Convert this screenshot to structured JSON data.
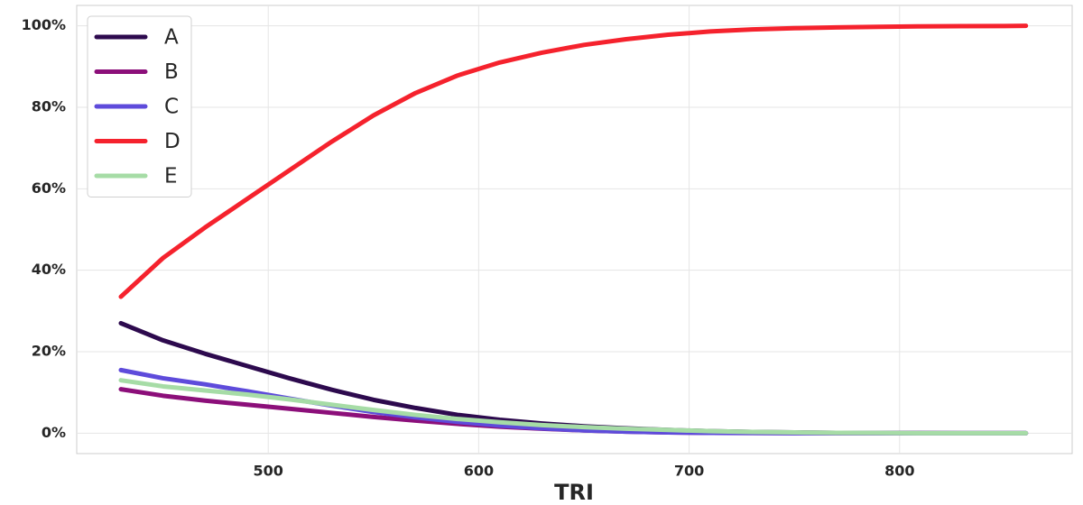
{
  "chart_data": {
    "type": "line",
    "x_label": "TRI",
    "x": [
      430,
      450,
      470,
      490,
      510,
      530,
      550,
      570,
      590,
      610,
      630,
      650,
      670,
      690,
      710,
      730,
      750,
      770,
      790,
      810,
      830,
      850,
      860
    ],
    "series": [
      {
        "name": "A",
        "color": "#2d0a4e",
        "values": [
          27,
          22.8,
          19.5,
          16.5,
          13.5,
          10.7,
          8.2,
          6.2,
          4.5,
          3.3,
          2.4,
          1.7,
          1.2,
          0.8,
          0.5,
          0.3,
          0.2,
          0.1,
          0.05,
          0.03,
          0.02,
          0.01,
          0
        ]
      },
      {
        "name": "B",
        "color": "#8c0f7a",
        "values": [
          10.8,
          9.2,
          8,
          7,
          6,
          5,
          4,
          3.1,
          2.3,
          1.6,
          1.1,
          0.7,
          0.4,
          0.2,
          0.1,
          0.05,
          0.03,
          0.01,
          0,
          0,
          0,
          0,
          0
        ]
      },
      {
        "name": "C",
        "color": "#5e4bdb",
        "values": [
          15.5,
          13.5,
          12,
          10.3,
          8.5,
          6.8,
          5.2,
          3.9,
          2.8,
          1.9,
          1.2,
          0.7,
          0.4,
          0.2,
          0.1,
          0.05,
          0.02,
          0.01,
          0,
          0,
          0,
          0,
          0
        ]
      },
      {
        "name": "D",
        "color": "#f5222d",
        "values": [
          33.5,
          43,
          50.5,
          57.5,
          64.5,
          71.5,
          78,
          83.5,
          87.8,
          91,
          93.4,
          95.3,
          96.7,
          97.8,
          98.6,
          99.1,
          99.4,
          99.6,
          99.75,
          99.85,
          99.9,
          99.95,
          100
        ]
      },
      {
        "name": "E",
        "color": "#a6dca6",
        "values": [
          13,
          11.5,
          10.5,
          9.5,
          8.3,
          7,
          5.7,
          4.5,
          3.5,
          2.7,
          2,
          1.5,
          1.1,
          0.8,
          0.5,
          0.3,
          0.2,
          0.1,
          0.05,
          0,
          0,
          0,
          0
        ]
      }
    ],
    "xlim": [
      409,
      882
    ],
    "xticks": [
      500,
      600,
      700,
      800
    ],
    "ylim": [
      -5,
      105
    ],
    "yticks": [
      {
        "value": 0,
        "label": "0%"
      },
      {
        "value": 20,
        "label": "20%"
      },
      {
        "value": 40,
        "label": "40%"
      },
      {
        "value": 60,
        "label": "60%"
      },
      {
        "value": 80,
        "label": "80%"
      },
      {
        "value": 100,
        "label": "100%"
      }
    ],
    "grid": true,
    "legend": "upper-left"
  }
}
